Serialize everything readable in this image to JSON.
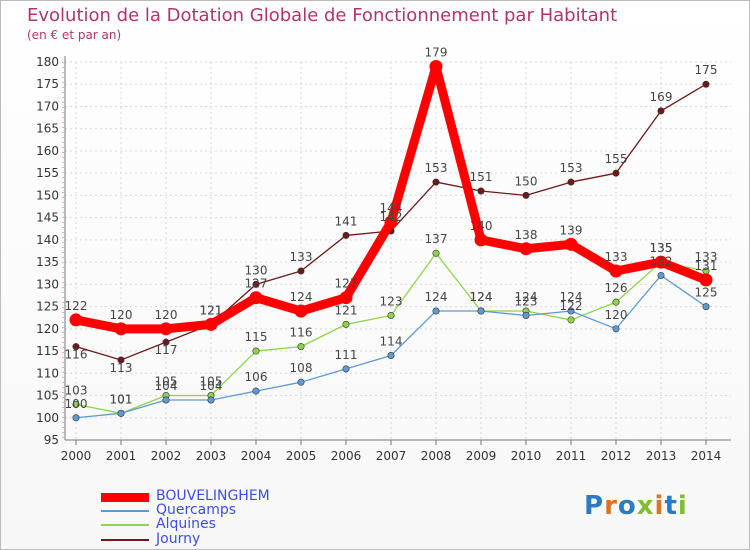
{
  "title": "Evolution de la Dotation Globale de Fonctionnement par Habitant",
  "subtitle": "(en € et par an)",
  "logo_text": "Proxiti",
  "chart_data": {
    "type": "line",
    "title": "Evolution de la Dotation Globale de Fonctionnement par Habitant",
    "ylabel": "(en € et par an)",
    "xlabel": "",
    "categories": [
      "2000",
      "2001",
      "2002",
      "2003",
      "2004",
      "2005",
      "2006",
      "2007",
      "2008",
      "2009",
      "2010",
      "2011",
      "2012",
      "2013",
      "2014"
    ],
    "ylim": [
      95,
      180
    ],
    "yticks": [
      95,
      100,
      105,
      110,
      115,
      120,
      125,
      130,
      135,
      140,
      145,
      150,
      155,
      160,
      165,
      170,
      175,
      180
    ],
    "grid": true,
    "legend": "bottom-left",
    "series": [
      {
        "name": "BOUVELINGHEM",
        "color": "#ff0000",
        "values": [
          122,
          120,
          120,
          121,
          127,
          124,
          127,
          144,
          179,
          140,
          138,
          139,
          133,
          135,
          131
        ]
      },
      {
        "name": "Quercamps",
        "color": "#5f9ad3",
        "values": [
          100,
          101,
          104,
          104,
          106,
          108,
          111,
          114,
          124,
          124,
          123,
          124,
          120,
          132,
          125
        ]
      },
      {
        "name": "Alquines",
        "color": "#8fd34d",
        "values": [
          103,
          101,
          105,
          105,
          115,
          116,
          121,
          123,
          137,
          124,
          124,
          122,
          126,
          135,
          133
        ]
      },
      {
        "name": "Journy",
        "color": "#6e1a1a",
        "values": [
          116,
          113,
          117,
          121,
          130,
          133,
          141,
          142,
          153,
          151,
          150,
          153,
          155,
          169,
          175
        ]
      }
    ]
  }
}
